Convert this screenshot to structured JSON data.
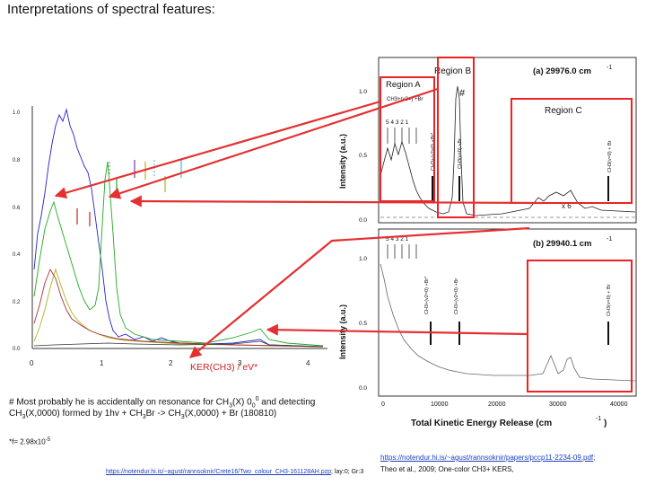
{
  "slide": {
    "title": "Interpretations of spectral features:",
    "left_plot_xlabel": "KER(CH3) / eV*",
    "hash_mark": "#",
    "note_line1_parts": [
      "# Most probably he is accidentally on resonance for CH",
      "3",
      "(X) 0",
      "0",
      "0",
      " and detecting"
    ],
    "note_line2_parts": [
      "CH",
      "3",
      "(X,0000) formed by 1hv + CH",
      "3",
      "Br -> CH",
      "3",
      "(X,0000) + Br (180810)"
    ],
    "footnote_parts": [
      "*f= 2.98x10",
      "-5"
    ],
    "left_link": "https://notendur.hi.is/~agust/rannsoknir/Crete16/Two_colour_CH3-161128AH.pzp",
    "left_link_suffix": "; lay:0; Gr:3",
    "right_link": "https://notendur.hi.is/~agust/rannsoknir/papers/pccp11-2234-09.pdf",
    "right_ref": "Theo et al., 2009; One-color CH3+ KERS,"
  },
  "colors": {
    "arrow_red": "#e53030",
    "box_red": "#ee2222",
    "blue": "#2222cc",
    "green": "#22aa22",
    "olive": "#b0b020",
    "darkred": "#aa3333",
    "link_blue": "#1a3fbf"
  },
  "left_plot": {
    "xticks": [
      "0",
      "1",
      "2",
      "3",
      "4"
    ],
    "yticks": [
      "0.0",
      "0.2",
      "0.4",
      "0.6",
      "0.8",
      "1.0"
    ]
  },
  "right_plot_a": {
    "title": "(a) 29976.0 cm",
    "title_sup": "-1",
    "region_a": "Region A",
    "region_b": "Region B",
    "region_c": "Region C",
    "ylabel": "Intensity (a.u.)",
    "yticks": [
      "0.0",
      "0.5",
      "1.0"
    ],
    "levels": "5 4 3 2 1",
    "scale_mark": "x 6",
    "labels": [
      "CH3+(v2=) +Br",
      "CH3+(v2=0) +Br*",
      "CH3(v=0) +Br",
      "CH3(v=0) + Br"
    ]
  },
  "right_plot_b": {
    "title": "(b) 29940.1 cm",
    "title_sup": "-1",
    "ylabel": "Intensity (a.u.)",
    "yticks": [
      "0.0",
      "0.5",
      "1.0"
    ],
    "levels": "5 4 3 2 1",
    "labels": [
      "CH3+(v2=0) +Br*",
      "CH3+(v2=0) +Br",
      "CH3(v=0) + Br"
    ],
    "xticks": [
      "0",
      "10000",
      "20000",
      "30000",
      "40000"
    ],
    "xlabel": "Total Kinetic Energy Release (cm",
    "xlabel_sup": "-1",
    "xlabel_end": ")"
  }
}
